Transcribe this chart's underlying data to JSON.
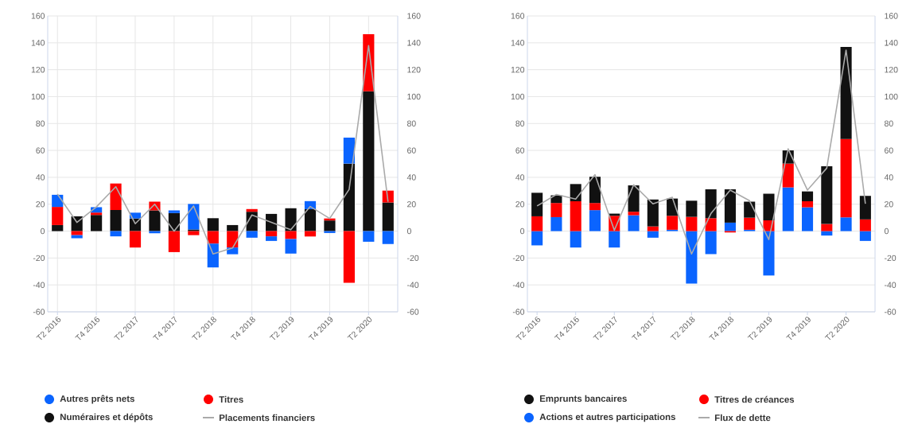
{
  "chart_data": [
    {
      "type": "bar",
      "stacked": true,
      "grid": true,
      "legend": "bottom",
      "categories": [
        "T2 2016",
        null,
        "T4 2016",
        null,
        "T2 2017",
        null,
        "T4 2017",
        null,
        "T2 2018",
        null,
        "T4 2018",
        null,
        "T2 2019",
        null,
        "T4 2019",
        null,
        "T2 2020",
        null
      ],
      "ylim": [
        -60,
        160
      ],
      "yticks": [
        -60,
        -40,
        -20,
        0,
        20,
        40,
        60,
        80,
        100,
        120,
        140,
        160
      ],
      "y2lim": [
        -60,
        160
      ],
      "y2ticks": [
        -60,
        -40,
        -20,
        0,
        20,
        40,
        60,
        80,
        100,
        120,
        140,
        160
      ],
      "series": [
        {
          "name": "Numéraires et dépôts",
          "color": "#111111",
          "values": [
            4.5,
            11,
            12,
            15.7,
            9.4,
            15.4,
            13.4,
            1.2,
            9.6,
            4.5,
            14.4,
            12.8,
            17,
            16.3,
            7.9,
            50.2,
            104,
            21.3
          ]
        },
        {
          "name": "Titres",
          "color": "#ff0000",
          "values": [
            13.5,
            -3,
            1.8,
            19.7,
            -12.2,
            6.5,
            -15.6,
            -3,
            -9.3,
            -12.2,
            2,
            -3.9,
            -5.9,
            -4,
            1.5,
            -38.4,
            42.4,
            8.8
          ]
        },
        {
          "name": "Autres prêts nets",
          "color": "#0a64ff",
          "values": [
            9,
            -2.3,
            4,
            -3.9,
            4.3,
            -1.6,
            2,
            19,
            -17.7,
            -5,
            -4.9,
            -3.4,
            -10.8,
            6,
            -1.4,
            19.3,
            -7.9,
            -9.6
          ]
        },
        {
          "name": "Placements financiers",
          "type": "line",
          "color": "#aaaaaa",
          "values": [
            27.5,
            6.5,
            18,
            33,
            5.5,
            20,
            0,
            18.7,
            -17,
            -12.6,
            12,
            6.5,
            1,
            18.3,
            9.4,
            31,
            138,
            21.8
          ]
        }
      ]
    },
    {
      "type": "bar",
      "stacked": true,
      "grid": "y",
      "legend": "bottom",
      "categories": [
        "T2 2016",
        null,
        "T4 2016",
        null,
        "T2 2017",
        null,
        "T4 2017",
        null,
        "T2 2018",
        null,
        "T4 2018",
        null,
        "T2 2019",
        null,
        "T4 2019",
        null,
        "T2 2020",
        null
      ],
      "ylim": [
        -60,
        160
      ],
      "yticks": [
        -60,
        -40,
        -20,
        0,
        20,
        40,
        60,
        80,
        100,
        120,
        140,
        160
      ],
      "y2lim": [
        -60,
        160
      ],
      "y2ticks": [
        -60,
        -40,
        -20,
        0,
        20,
        40,
        60,
        80,
        100,
        120,
        140,
        160
      ],
      "series": [
        {
          "name": "Actions et autres participations",
          "color": "#0a64ff",
          "values": [
            -10.6,
            10.4,
            -12.2,
            15.6,
            -12.2,
            11.8,
            -4.9,
            1,
            -39,
            -17.1,
            6.3,
            1,
            -33,
            32.5,
            17.7,
            -3.3,
            10.2,
            -7.3
          ]
        },
        {
          "name": "Titres de créances",
          "color": "#ff0000",
          "values": [
            11,
            10.5,
            22.2,
            5.3,
            11.4,
            2.6,
            3.5,
            10.4,
            10.6,
            9.6,
            -1,
            9,
            8,
            17.7,
            4.5,
            5.3,
            58.3,
            8.7
          ]
        },
        {
          "name": "Emprunts bancaires",
          "color": "#111111",
          "values": [
            17.5,
            5.7,
            12.8,
            19.5,
            1.6,
            19.6,
            20,
            12.8,
            12,
            21.5,
            24.8,
            11.9,
            19.8,
            9.8,
            7.3,
            42.9,
            68.5,
            17.5
          ]
        },
        {
          "name": "Flux de dette",
          "type": "line",
          "color": "#aaaaaa",
          "values": [
            18.7,
            27.2,
            23.8,
            42,
            0.6,
            34.4,
            20.3,
            25.2,
            -17,
            13,
            30.5,
            22.6,
            -6.3,
            61.2,
            30.5,
            46.8,
            134.6,
            20.3
          ]
        }
      ]
    }
  ]
}
